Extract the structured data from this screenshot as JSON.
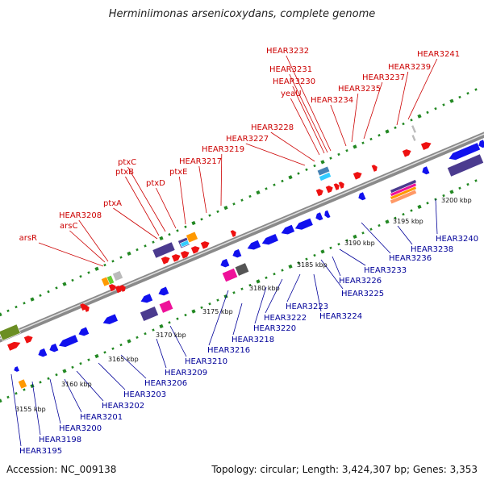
{
  "title": "Herminiimonas arsenicoxydans, complete genome",
  "footer": {
    "accession": "Accession: NC_009138",
    "stats": "Topology: circular; Length: 3,424,307 bp; Genes: 3,353"
  },
  "colors": {
    "forward_gene": "#ee1111",
    "reverse_gene": "#1111ee",
    "forward_label": "#cc0000",
    "reverse_label": "#000099",
    "backbone": "#8a8a8a",
    "tick_green": "#228822"
  },
  "scale_labels": [
    "3155 kbp",
    "3160 kbp",
    "3165 kbp",
    "3170 kbp",
    "3175 kbp",
    "3180 kbp",
    "3185 kbp",
    "3190 kbp",
    "3195 kbp",
    "3200 kbp"
  ],
  "forward_labels": [
    "arsR",
    "arsC",
    "HEAR3208",
    "ptxA",
    "ptxB",
    "ptxC",
    "ptxD",
    "ptxE",
    "HEAR3217",
    "HEAR3219",
    "HEAR3227",
    "HEAR3228",
    "yeaU",
    "HEAR3230",
    "HEAR3231",
    "HEAR3232",
    "HEAR3234",
    "HEAR3235",
    "HEAR3237",
    "HEAR3239",
    "HEAR3241"
  ],
  "reverse_labels": [
    "HEAR3195",
    "HEAR3198",
    "HEAR3200",
    "HEAR3201",
    "HEAR3202",
    "HEAR3203",
    "HEAR3206",
    "HEAR3209",
    "HEAR3210",
    "HEAR3216",
    "HEAR3218",
    "HEAR3220",
    "HEAR3222",
    "HEAR3223",
    "HEAR3224",
    "HEAR3225",
    "HEAR3226",
    "HEAR3233",
    "HEAR3236",
    "HEAR3238",
    "HEAR3240"
  ]
}
